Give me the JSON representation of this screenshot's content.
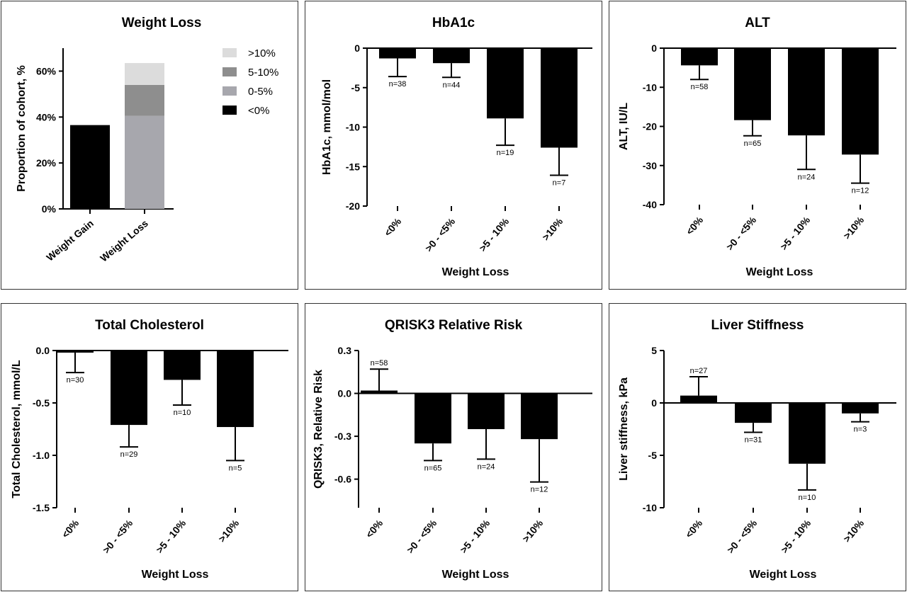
{
  "chart_data": [
    {
      "type": "bar",
      "stacked": true,
      "title": "Weight Loss",
      "ylabel": "Proportion of cohort, %",
      "xlabel": "",
      "categories": [
        "Weight Gain",
        "Weight Loss"
      ],
      "ylim": [
        0,
        70
      ],
      "yticks": [
        0,
        20,
        40,
        60
      ],
      "ytick_labels": [
        "0%",
        "20%",
        "40%",
        "60%"
      ],
      "legend_position": "top-right",
      "series": [
        {
          "name": "<0%",
          "color": "#000000",
          "values": [
            36.5,
            0
          ]
        },
        {
          "name": "0-5%",
          "color": "#a7a7ad",
          "values": [
            0,
            40.5
          ]
        },
        {
          "name": "5-10%",
          "color": "#8e8e8e",
          "values": [
            0,
            13.5
          ]
        },
        {
          "name": ">10%",
          "color": "#dcdcdc",
          "values": [
            0,
            9.5
          ]
        }
      ]
    },
    {
      "type": "bar",
      "title": "HbA1c",
      "ylabel": "HbA1c, mmol/mol",
      "xlabel": "Weight Loss",
      "categories": [
        "<0%",
        ">0 - <5%",
        ">5 - 10%",
        ">10%"
      ],
      "values": [
        -1.3,
        -1.9,
        -8.9,
        -12.6
      ],
      "error_low": [
        -3.6,
        -3.7,
        -12.3,
        -16.1
      ],
      "n_labels": [
        "n=38",
        "n=44",
        "n=19",
        "n=7"
      ],
      "ylim": [
        -20,
        0
      ],
      "yticks": [
        0,
        -5,
        -10,
        -15,
        -20
      ],
      "ytick_labels": [
        "0",
        "-5",
        "-10",
        "-15",
        "-20"
      ]
    },
    {
      "type": "bar",
      "title": "ALT",
      "ylabel": "ALT, IU/L",
      "xlabel": "Weight Loss",
      "categories": [
        "<0%",
        ">0 - <5%",
        ">5 - 10%",
        ">10%"
      ],
      "values": [
        -4.4,
        -18.4,
        -22.3,
        -27.2
      ],
      "error_low": [
        -8.0,
        -22.4,
        -31.0,
        -34.5
      ],
      "n_labels": [
        "n=58",
        "n=65",
        "n=24",
        "n=12"
      ],
      "ylim": [
        -40,
        0
      ],
      "yticks": [
        0,
        -10,
        -20,
        -30,
        -40
      ],
      "ytick_labels": [
        "0",
        "-10",
        "-20",
        "-30",
        "-40"
      ]
    },
    {
      "type": "bar",
      "title": "Total Cholesterol",
      "ylabel": "Total Cholesterol, mmol/L",
      "xlabel": "Weight Loss",
      "categories": [
        "<0%",
        ">0 - <5%",
        ">5 - 10%",
        ">10%"
      ],
      "values": [
        -0.02,
        -0.71,
        -0.28,
        -0.73
      ],
      "error_low": [
        -0.21,
        -0.92,
        -0.52,
        -1.05
      ],
      "n_labels": [
        "n=30",
        "n=29",
        "n=10",
        "n=5"
      ],
      "ylim": [
        -1.5,
        0
      ],
      "yticks": [
        0,
        -0.5,
        -1.0,
        -1.5
      ],
      "ytick_labels": [
        "0.0",
        "-0.5",
        "-1.0",
        "-1.5"
      ]
    },
    {
      "type": "bar",
      "title": "QRISK3 Relative Risk",
      "ylabel": "QRISK3, Relative Risk",
      "xlabel": "Weight Loss",
      "categories": [
        "<0%",
        ">0 - <5%",
        ">5 - 10%",
        ">10%"
      ],
      "values": [
        0.02,
        -0.35,
        -0.25,
        -0.32
      ],
      "error_low": [
        0.17,
        -0.47,
        -0.46,
        -0.62
      ],
      "n_labels": [
        "n=58",
        "n=65",
        "n=24",
        "n=12"
      ],
      "ylim": [
        -0.8,
        0.3
      ],
      "yticks": [
        0.3,
        0,
        -0.3,
        -0.6
      ],
      "ytick_labels": [
        "0.3",
        "0.0",
        "-0.3",
        "-0.6"
      ]
    },
    {
      "type": "bar",
      "title": "Liver Stiffness",
      "ylabel": "Liver stiffness, kPa",
      "xlabel": "Weight Loss",
      "categories": [
        "<0%",
        ">0 - <5%",
        ">5 - 10%",
        ">10%"
      ],
      "values": [
        0.7,
        -1.9,
        -5.8,
        -1.0
      ],
      "error_low": [
        2.5,
        -2.8,
        -8.3,
        -1.8
      ],
      "n_labels": [
        "n=27",
        "n=31",
        "n=10",
        "n=3"
      ],
      "ylim": [
        -10,
        5
      ],
      "yticks": [
        5,
        0,
        -5,
        -10
      ],
      "ytick_labels": [
        "5",
        "0",
        "-5",
        "-10"
      ]
    }
  ]
}
